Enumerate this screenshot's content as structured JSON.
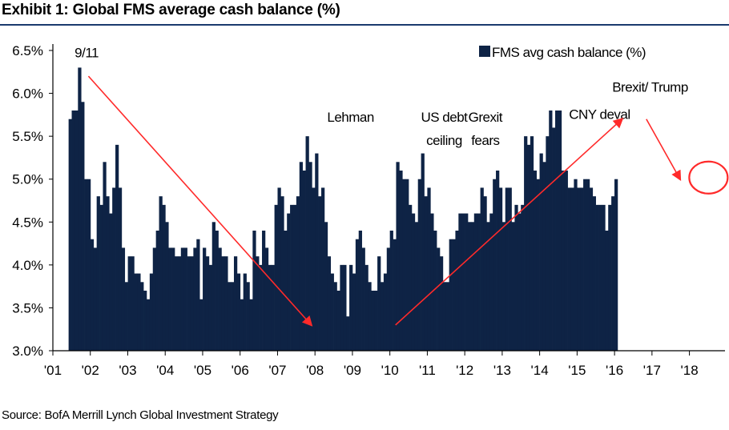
{
  "header": {
    "title": "Exhibit 1: Global FMS average cash balance (%)"
  },
  "footer": {
    "source": "Source: BofA Merrill Lynch Global Investment Strategy"
  },
  "colors": {
    "bar": "#0e2345",
    "arrow": "#ff2a2a",
    "axis": "#000000"
  },
  "chart_data": {
    "type": "bar",
    "title": "Exhibit 1: Global FMS average cash balance (%)",
    "ylabel": "",
    "xlabel": "",
    "ylim": [
      3.0,
      6.5
    ],
    "yticks": [
      3.0,
      3.5,
      4.0,
      4.5,
      5.0,
      5.5,
      6.0,
      6.5
    ],
    "ytick_labels": [
      "3.0%",
      "3.5%",
      "4.0%",
      "4.5%",
      "5.0%",
      "5.5%",
      "6.0%",
      "6.5%"
    ],
    "xticks": [
      2001,
      2002,
      2003,
      2004,
      2005,
      2006,
      2007,
      2008,
      2009,
      2010,
      2011,
      2012,
      2013,
      2014,
      2015,
      2016,
      2017,
      2018
    ],
    "xtick_labels": [
      "'01",
      "'02",
      "'03",
      "'04",
      "'05",
      "'06",
      "'07",
      "'08",
      "'09",
      "'10",
      "'11",
      "'12",
      "'13",
      "'14",
      "'15",
      "'16",
      "'17",
      "'18"
    ],
    "legend": {
      "label": "FMS avg cash balance (%)",
      "position": "top-right"
    },
    "series": [
      {
        "name": "FMS avg cash balance (%)",
        "start_year": 2001.42,
        "step": 0.0833,
        "values": [
          5.7,
          5.8,
          5.8,
          6.3,
          5.9,
          5.0,
          5.0,
          4.3,
          4.2,
          4.8,
          4.7,
          5.2,
          4.8,
          4.6,
          4.9,
          5.4,
          4.9,
          4.2,
          3.8,
          4.1,
          4.1,
          3.9,
          3.9,
          3.8,
          3.7,
          3.6,
          3.9,
          4.2,
          4.4,
          4.8,
          4.7,
          4.5,
          4.2,
          4.2,
          4.1,
          4.1,
          4.2,
          4.2,
          4.1,
          4.1,
          4.2,
          4.3,
          3.6,
          4.2,
          4.1,
          4.0,
          4.5,
          4.4,
          4.2,
          4.1,
          4.1,
          3.8,
          3.8,
          4.1,
          3.9,
          3.6,
          3.9,
          3.8,
          3.6,
          4.4,
          4.1,
          4.0,
          4.4,
          4.2,
          4.0,
          4.0,
          4.7,
          4.9,
          4.8,
          4.4,
          4.6,
          4.7,
          4.7,
          4.8,
          5.2,
          5.1,
          5.5,
          5.2,
          4.9,
          5.3,
          4.8,
          4.9,
          4.5,
          4.1,
          3.9,
          3.8,
          3.7,
          4.0,
          4.0,
          3.4,
          4.0,
          3.9,
          4.3,
          4.4,
          4.2,
          4.0,
          3.8,
          3.7,
          3.7,
          4.1,
          3.8,
          3.9,
          4.2,
          4.4,
          4.3,
          5.2,
          5.1,
          5.0,
          5.0,
          4.7,
          4.6,
          4.5,
          5.0,
          5.3,
          4.8,
          4.9,
          4.6,
          4.4,
          4.2,
          4.1,
          3.8,
          3.8,
          4.3,
          4.3,
          4.4,
          4.6,
          4.6,
          4.6,
          4.5,
          4.5,
          4.6,
          4.6,
          4.9,
          4.8,
          4.5,
          4.6,
          5.0,
          5.1,
          4.9,
          4.5,
          4.9,
          4.9,
          4.5,
          4.7,
          4.6,
          4.7,
          5.5,
          5.4,
          5.5,
          5.1,
          5.0,
          5.3,
          5.2,
          5.5,
          5.8,
          5.6,
          5.8,
          5.8,
          5.1,
          5.1,
          4.9,
          4.9,
          5.0,
          4.9,
          4.9,
          5.0,
          5.0,
          4.9,
          4.8,
          4.7,
          4.7,
          4.7,
          4.4,
          4.7,
          4.8,
          5.0
        ]
      }
    ],
    "annotations": [
      {
        "label": "9/11",
        "year": 2001.9,
        "value": 6.42
      },
      {
        "label": "Lehman",
        "year": 2008.95,
        "value": 5.67
      },
      {
        "label": "US debt",
        "year": 2011.45,
        "value": 5.67
      },
      {
        "label": "ceiling",
        "year": 2011.45,
        "value": 5.4
      },
      {
        "label": "Grexit",
        "year": 2012.55,
        "value": 5.67
      },
      {
        "label": "fears",
        "year": 2012.55,
        "value": 5.4
      },
      {
        "label": "CNY deval",
        "year": 2015.6,
        "value": 5.7
      },
      {
        "label": "Brexit/ Trump",
        "year": 2016.95,
        "value": 6.02
      }
    ],
    "trend_arrows": [
      {
        "from": [
          2001.95,
          6.2
        ],
        "to": [
          2007.9,
          3.3
        ]
      },
      {
        "from": [
          2010.15,
          3.3
        ],
        "to": [
          2016.2,
          5.7
        ]
      },
      {
        "from": [
          2016.85,
          5.7
        ],
        "to": [
          2017.75,
          5.0
        ]
      }
    ],
    "highlight_circle": {
      "year": 2018.38,
      "value": 5.0
    }
  }
}
